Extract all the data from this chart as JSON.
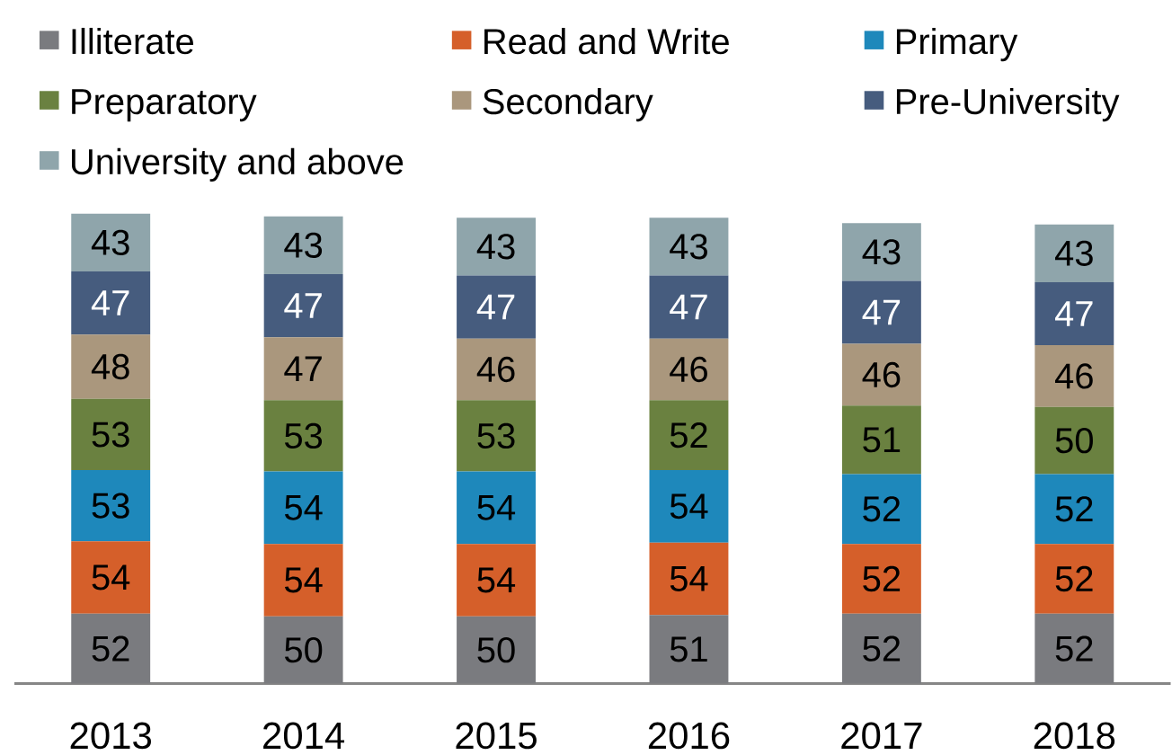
{
  "chart_data": {
    "type": "bar",
    "stacked": true,
    "categories": [
      "2013",
      "2014",
      "2015",
      "2016",
      "2017",
      "2018"
    ],
    "series": [
      {
        "name": "Illiterate",
        "color": "#7a7b7f",
        "values": [
          52,
          50,
          50,
          51,
          52,
          52
        ]
      },
      {
        "name": "Read and Write",
        "color": "#d55f2a",
        "values": [
          54,
          54,
          54,
          54,
          52,
          52
        ]
      },
      {
        "name": "Primary",
        "color": "#1e88bb",
        "values": [
          53,
          54,
          54,
          54,
          52,
          52
        ]
      },
      {
        "name": "Preparatory",
        "color": "#6a8140",
        "values": [
          53,
          53,
          53,
          52,
          51,
          50
        ]
      },
      {
        "name": "Secondary",
        "color": "#aa977d",
        "values": [
          48,
          47,
          46,
          46,
          46,
          46
        ]
      },
      {
        "name": "Pre-University",
        "color": "#465c7e",
        "values": [
          47,
          47,
          47,
          47,
          47,
          47
        ]
      },
      {
        "name": "University and above",
        "color": "#8fa5ab",
        "values": [
          43,
          43,
          43,
          43,
          43,
          43
        ]
      }
    ],
    "data_labels": true,
    "legend": "top",
    "tick_labels": "x"
  }
}
